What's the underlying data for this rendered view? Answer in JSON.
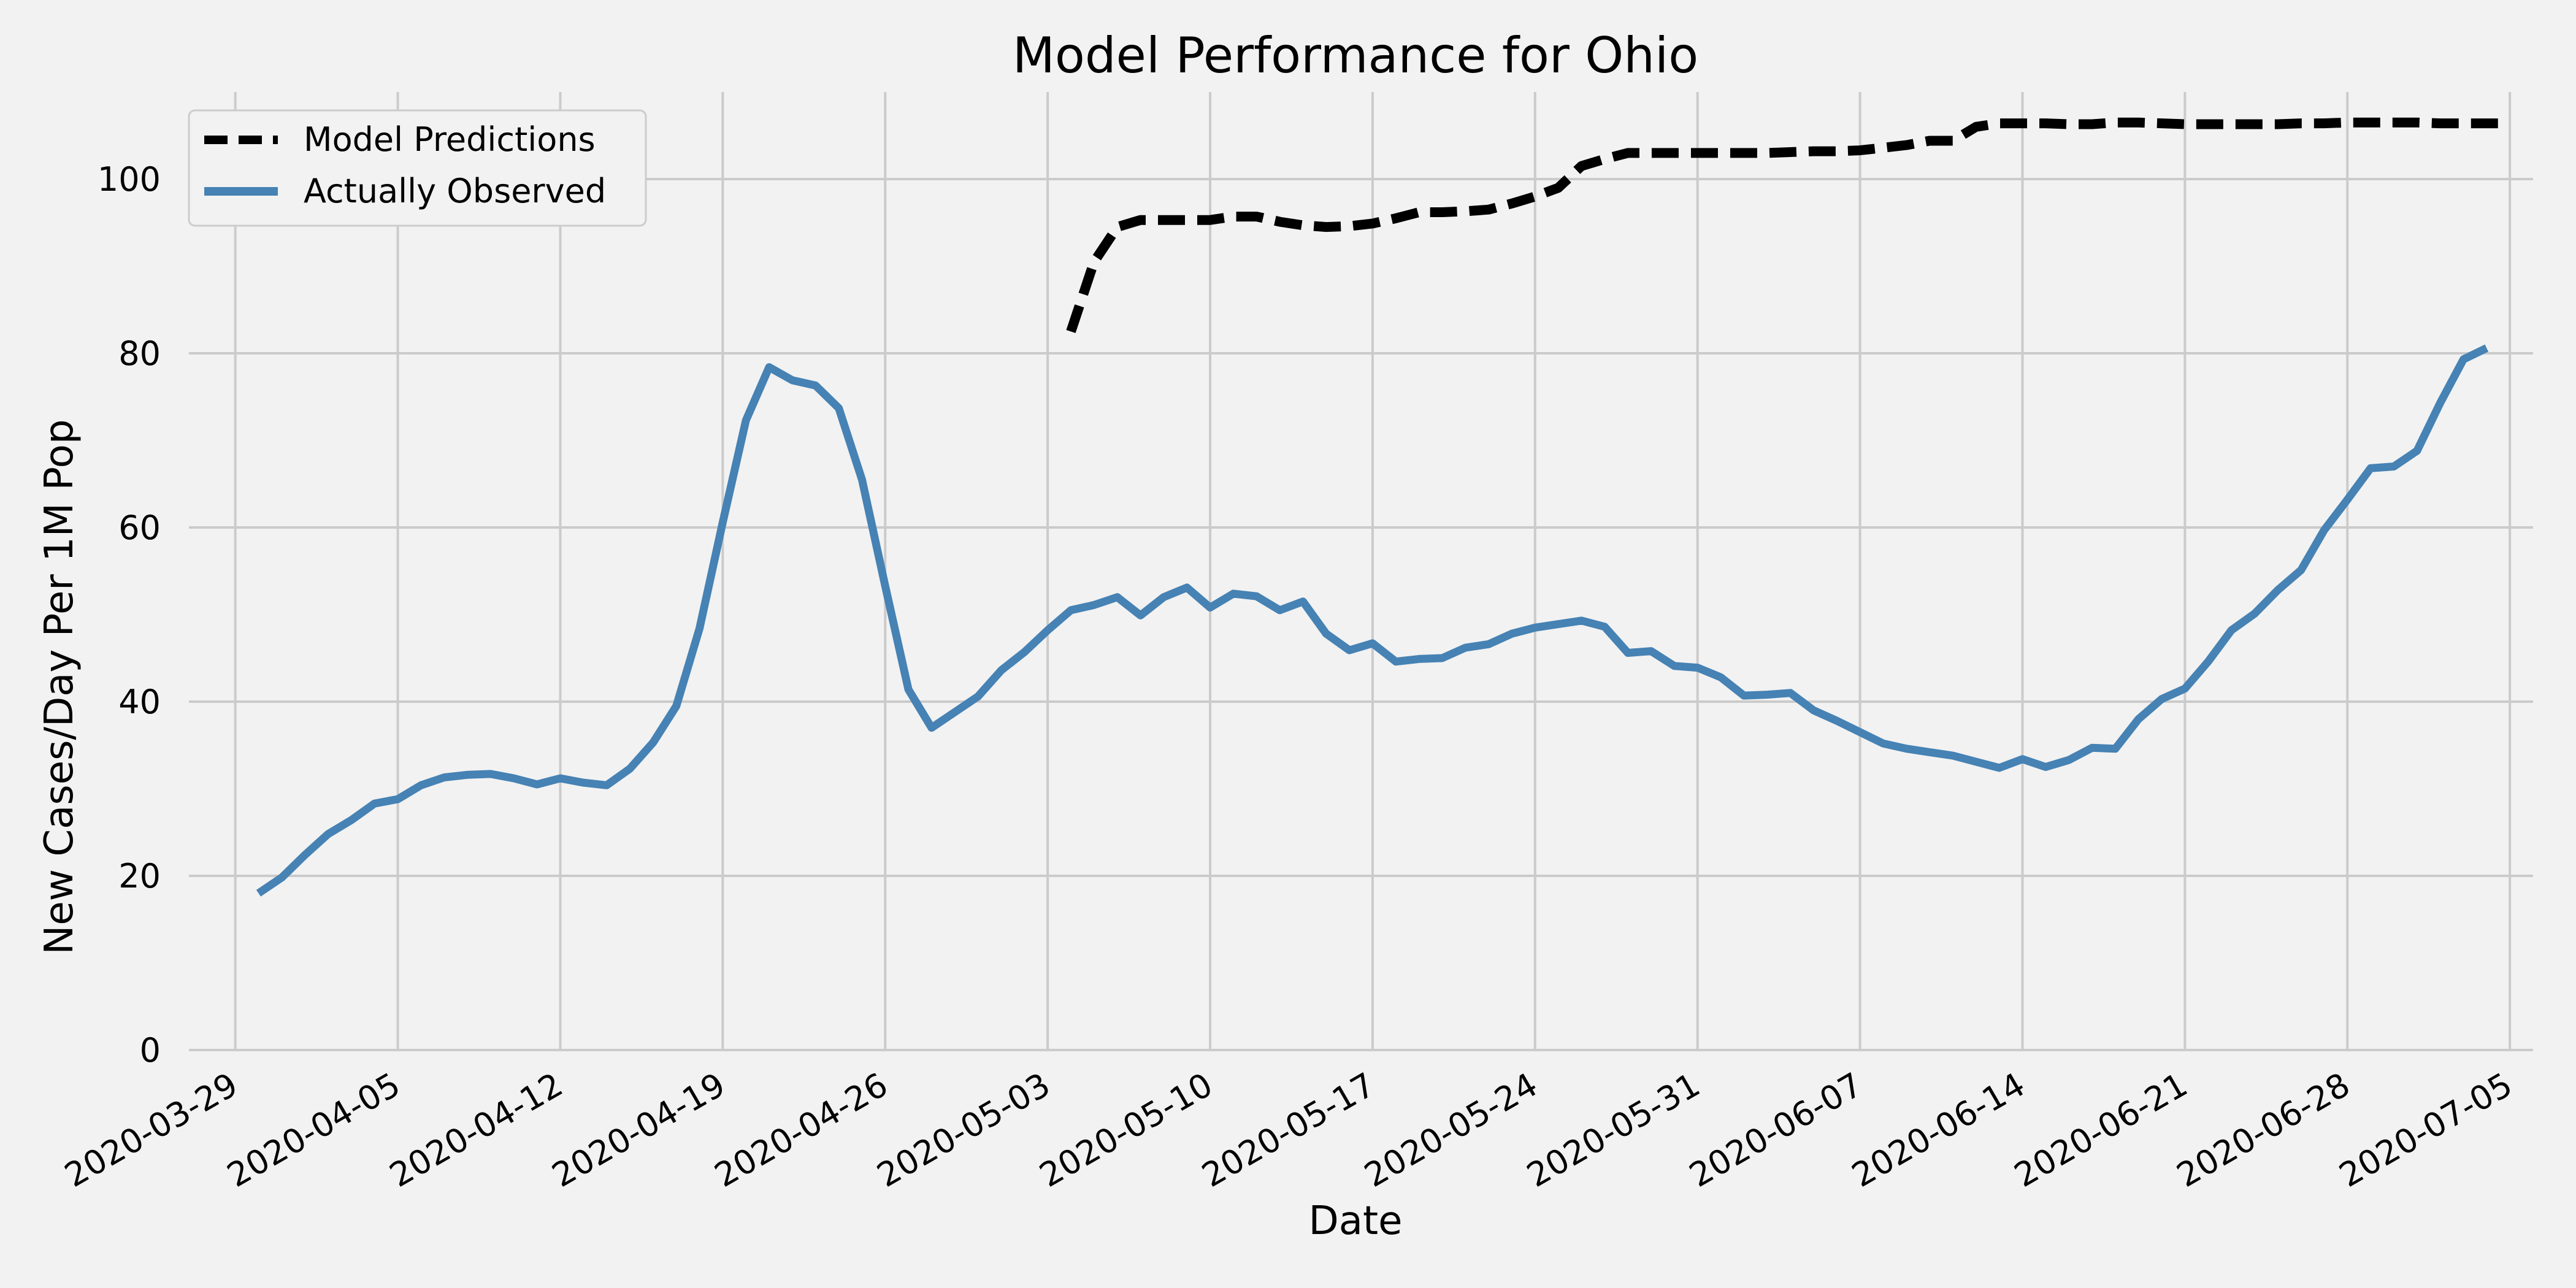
{
  "chart_data": {
    "type": "line",
    "title": "Model Performance for Ohio",
    "xlabel": "Date",
    "ylabel": "New Cases/Day Per 1M Pop",
    "ylim": [
      0,
      110
    ],
    "xlim": [
      "2020-03-27",
      "2020-07-06"
    ],
    "grid": true,
    "legend_position": "top-left",
    "x_ticks": [
      "2020-03-29",
      "2020-04-05",
      "2020-04-12",
      "2020-04-19",
      "2020-04-26",
      "2020-05-03",
      "2020-05-10",
      "2020-05-17",
      "2020-05-24",
      "2020-05-31",
      "2020-06-07",
      "2020-06-14",
      "2020-06-21",
      "2020-06-28",
      "2020-07-05"
    ],
    "y_ticks": [
      0,
      20,
      40,
      60,
      80,
      100
    ],
    "series": [
      {
        "name": "Model Predictions",
        "color": "#000000",
        "style": "dashed",
        "start_date": "2020-05-04",
        "values": [
          82.5,
          90.5,
          94.5,
          95.3,
          95.3,
          95.3,
          95.3,
          95.7,
          95.7,
          95.1,
          94.7,
          94.5,
          94.6,
          94.9,
          95.5,
          96.2,
          96.2,
          96.3,
          96.5,
          97.2,
          98.0,
          99.0,
          101.5,
          102.3,
          103.0,
          103.0,
          103.0,
          103.0,
          103.0,
          103.0,
          103.0,
          103.1,
          103.2,
          103.2,
          103.3,
          103.6,
          103.9,
          104.4,
          104.4,
          106.0,
          106.4,
          106.4,
          106.4,
          106.3,
          106.3,
          106.5,
          106.5,
          106.4,
          106.3,
          106.3,
          106.3,
          106.3,
          106.3,
          106.4,
          106.4,
          106.5,
          106.5,
          106.5,
          106.5,
          106.4,
          106.4,
          106.4,
          106.4
        ]
      },
      {
        "name": "Actually Observed",
        "color": "#4682b4",
        "style": "solid",
        "start_date": "2020-03-30",
        "values": [
          18.0,
          19.8,
          22.4,
          24.8,
          26.4,
          28.3,
          28.8,
          30.4,
          31.3,
          31.6,
          31.7,
          31.2,
          30.5,
          31.2,
          30.7,
          30.4,
          32.3,
          35.3,
          39.5,
          48.4,
          60.6,
          72.3,
          78.4,
          76.9,
          76.3,
          73.7,
          65.5,
          53.3,
          41.4,
          37.0,
          38.8,
          40.6,
          43.6,
          45.7,
          48.2,
          50.5,
          51.1,
          52.0,
          49.9,
          52.0,
          53.1,
          50.8,
          52.4,
          52.1,
          50.5,
          51.5,
          47.8,
          45.9,
          46.7,
          44.6,
          44.9,
          45.0,
          46.2,
          46.6,
          47.8,
          48.5,
          48.9,
          49.3,
          48.6,
          45.6,
          45.8,
          44.1,
          43.9,
          42.8,
          40.7,
          40.8,
          41.0,
          39.0,
          37.8,
          36.5,
          35.2,
          34.6,
          34.2,
          33.8,
          33.1,
          32.4,
          33.4,
          32.5,
          33.3,
          34.7,
          34.6,
          38.0,
          40.3,
          41.5,
          44.6,
          48.2,
          50.1,
          52.8,
          55.1,
          59.7,
          63.2,
          66.8,
          67.0,
          68.8,
          74.3,
          79.3,
          80.6
        ]
      }
    ]
  }
}
